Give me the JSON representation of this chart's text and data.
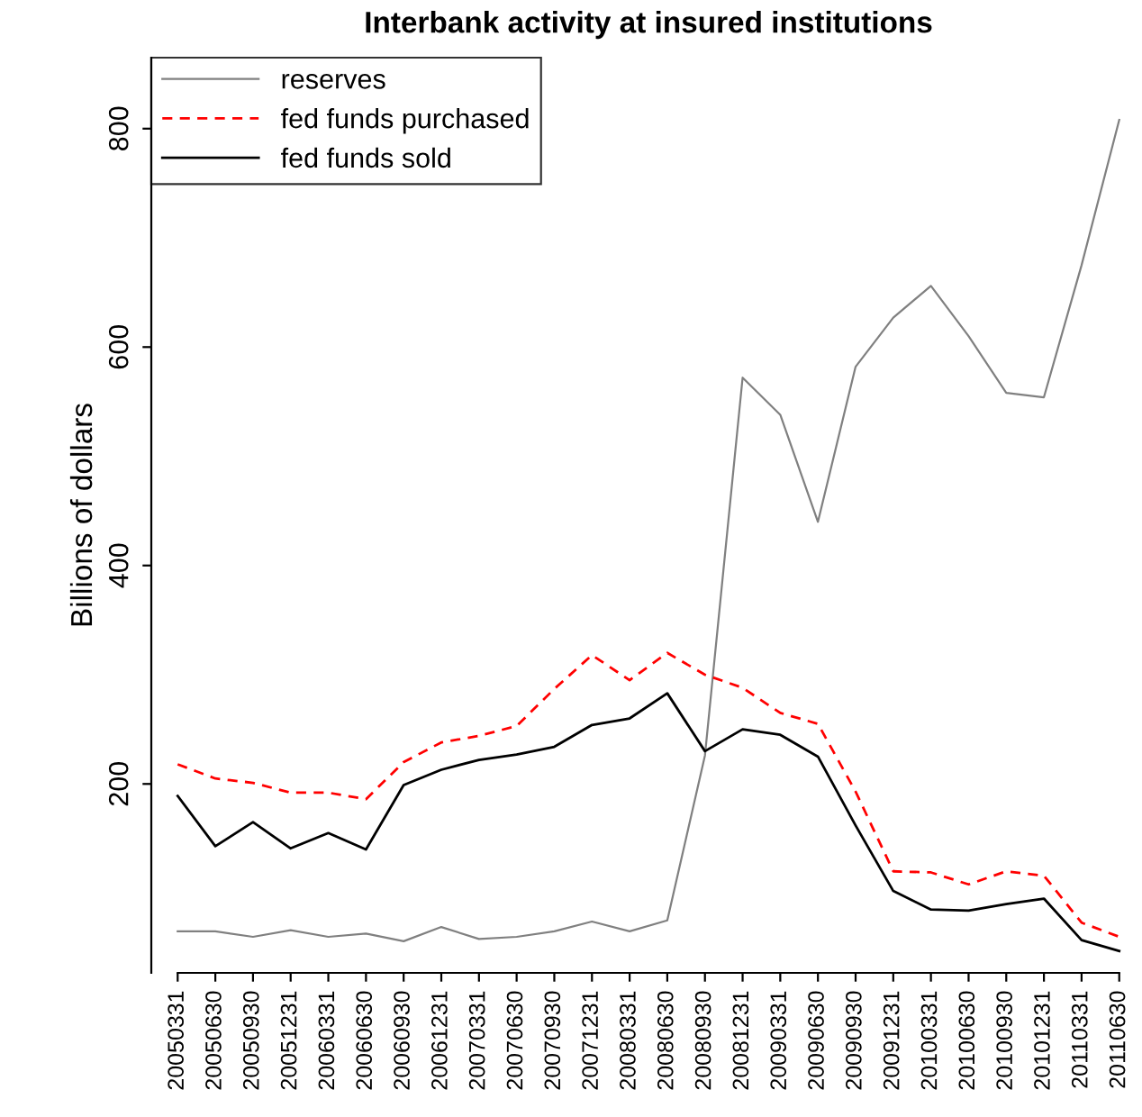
{
  "chart_data": {
    "type": "line",
    "title": "Interbank activity at insured institutions",
    "ylabel": "Billions of dollars",
    "categories": [
      "20050331",
      "20050630",
      "20050930",
      "20051231",
      "20060331",
      "20060630",
      "20060930",
      "20061231",
      "20070331",
      "20070630",
      "20070930",
      "20071231",
      "20080331",
      "20080630",
      "20080930",
      "20081231",
      "20090331",
      "20090630",
      "20090930",
      "20091231",
      "20100331",
      "20100630",
      "20100930",
      "20101231",
      "20110331",
      "20110630"
    ],
    "series": [
      {
        "name": "reserves",
        "color": "#808080",
        "line_style": "solid",
        "values": [
          65,
          65,
          60,
          66,
          60,
          63,
          56,
          69,
          58,
          60,
          65,
          74,
          65,
          75,
          226,
          572,
          538,
          440,
          582,
          627,
          656,
          610,
          558,
          554,
          675,
          808
        ]
      },
      {
        "name": "fed funds purchased",
        "color": "#ff0000",
        "line_style": "dashed",
        "values": [
          218,
          205,
          201,
          192,
          192,
          186,
          220,
          238,
          244,
          253,
          287,
          318,
          295,
          320,
          300,
          288,
          265,
          255,
          193,
          120,
          119,
          108,
          120,
          116,
          73,
          60
        ]
      },
      {
        "name": "fed funds sold",
        "color": "#000000",
        "line_style": "solid",
        "values": [
          189,
          143,
          165,
          141,
          155,
          140,
          199,
          213,
          222,
          227,
          234,
          254,
          260,
          283,
          230,
          250,
          245,
          225,
          162,
          102,
          85,
          84,
          90,
          95,
          57,
          47
        ]
      }
    ],
    "ylim": [
      27,
      865
    ],
    "yticks": [
      200,
      400,
      600,
      800
    ],
    "legend": "top left",
    "grid": false
  }
}
